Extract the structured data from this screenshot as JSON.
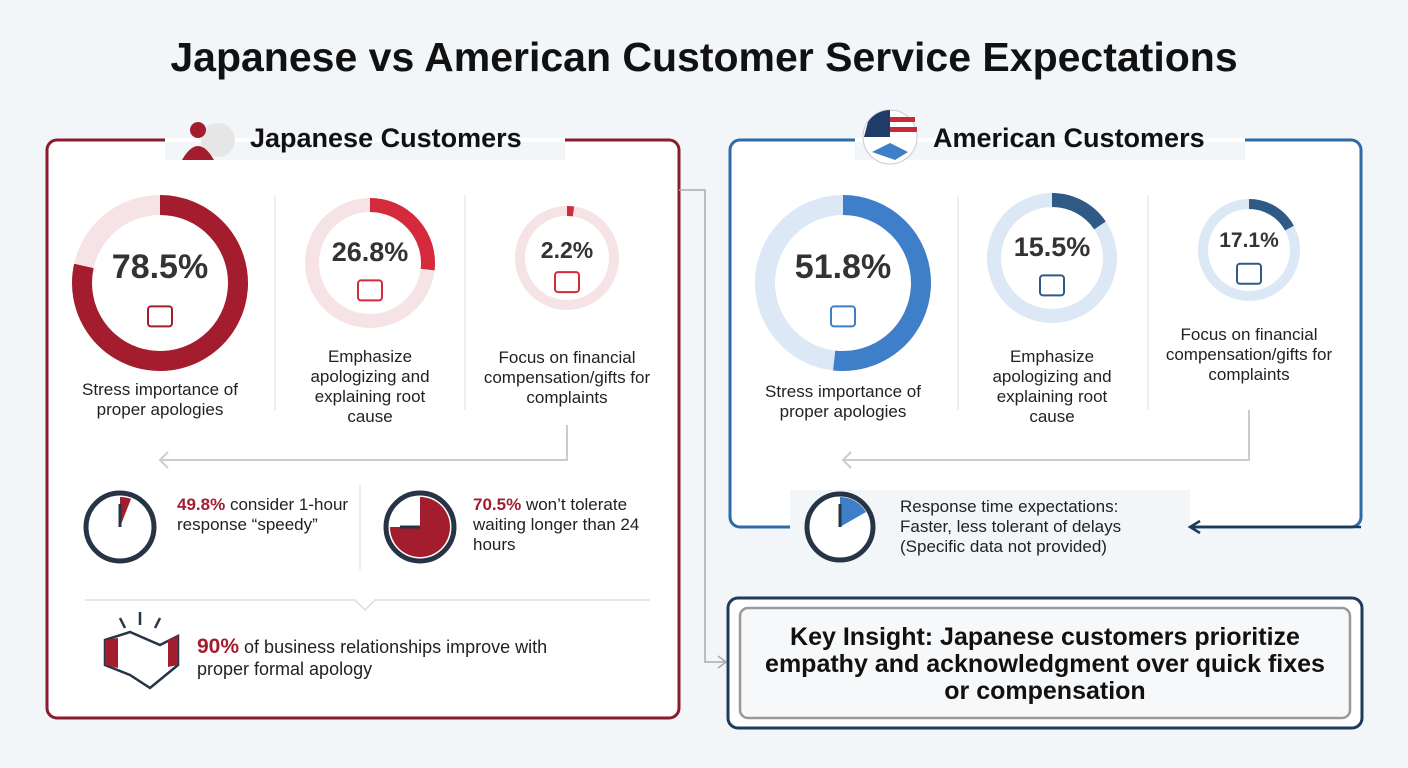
{
  "title": "Japanese vs American Customer Service Expectations",
  "japanese": {
    "heading": "Japanese Customers",
    "stats": [
      {
        "value": 78.5,
        "label": "78.5%",
        "text": "Stress importance of proper apologies"
      },
      {
        "value": 26.8,
        "label": "26.8%",
        "text": "Emphasize apologizing and explaining root cause"
      },
      {
        "value": 2.2,
        "label": "2.2%",
        "text": "Focus on financial compensation/gifts for complaints"
      }
    ],
    "response": [
      {
        "label": "49.8%",
        "text": "consider 1-hour response “speedy”"
      },
      {
        "label": "70.5%",
        "text": "won’t tolerate waiting longer than 24 hours"
      }
    ],
    "relationship": {
      "label": "90%",
      "text": "of business relationships improve with proper formal apology"
    }
  },
  "american": {
    "heading": "American Customers",
    "stats": [
      {
        "value": 51.8,
        "label": "51.8%",
        "text": "Stress importance of proper apologies"
      },
      {
        "value": 15.5,
        "label": "15.5%",
        "text": "Emphasize apologizing and explaining root cause"
      },
      {
        "value": 17.1,
        "label": "17.1%",
        "text": "Focus on financial compensation/gifts for complaints"
      }
    ],
    "response": "Response time expectations: Faster, less tolerant of delays (Specific data not provided)"
  },
  "insight": "Key Insight: Japanese customers prioritize empathy and acknowledgment over quick fixes or compensation"
}
